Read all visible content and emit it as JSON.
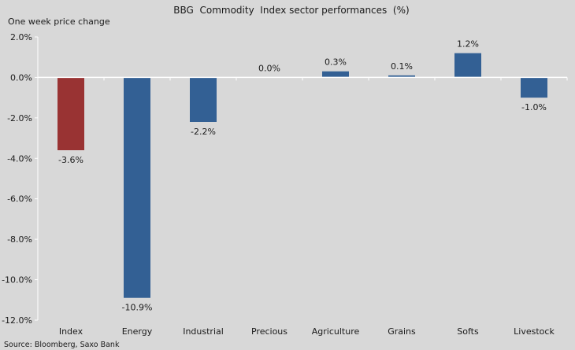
{
  "chart_data": {
    "type": "bar",
    "title": "BBG  Commodity  Index sector performances  (%)",
    "subtitle": "One week price change",
    "source": "Source: Bloomberg, Saxo Bank",
    "categories": [
      "Index",
      "Energy",
      "Industrial",
      "Precious",
      "Agriculture",
      "Grains",
      "Softs",
      "Livestock"
    ],
    "values": [
      -3.6,
      -10.9,
      -2.2,
      0.0,
      0.3,
      0.1,
      1.2,
      -1.0
    ],
    "data_labels": [
      "-3.6%",
      "-10.9%",
      "-2.2%",
      "0.0%",
      "0.3%",
      "0.1%",
      "1.2%",
      "-1.0%"
    ],
    "colors": [
      "#993333",
      "#336094",
      "#336094",
      "#336094",
      "#336094",
      "#336094",
      "#336094",
      "#336094"
    ],
    "ylim": [
      -12,
      2
    ],
    "yticks": [
      2,
      0,
      -2,
      -4,
      -6,
      -8,
      -10,
      -12
    ],
    "ytick_labels": [
      "2.0%",
      "0.0%",
      "-2.0%",
      "-4.0%",
      "-6.0%",
      "-8.0%",
      "-10.0%",
      "-12.0%"
    ],
    "grid": false,
    "legend": "none"
  }
}
